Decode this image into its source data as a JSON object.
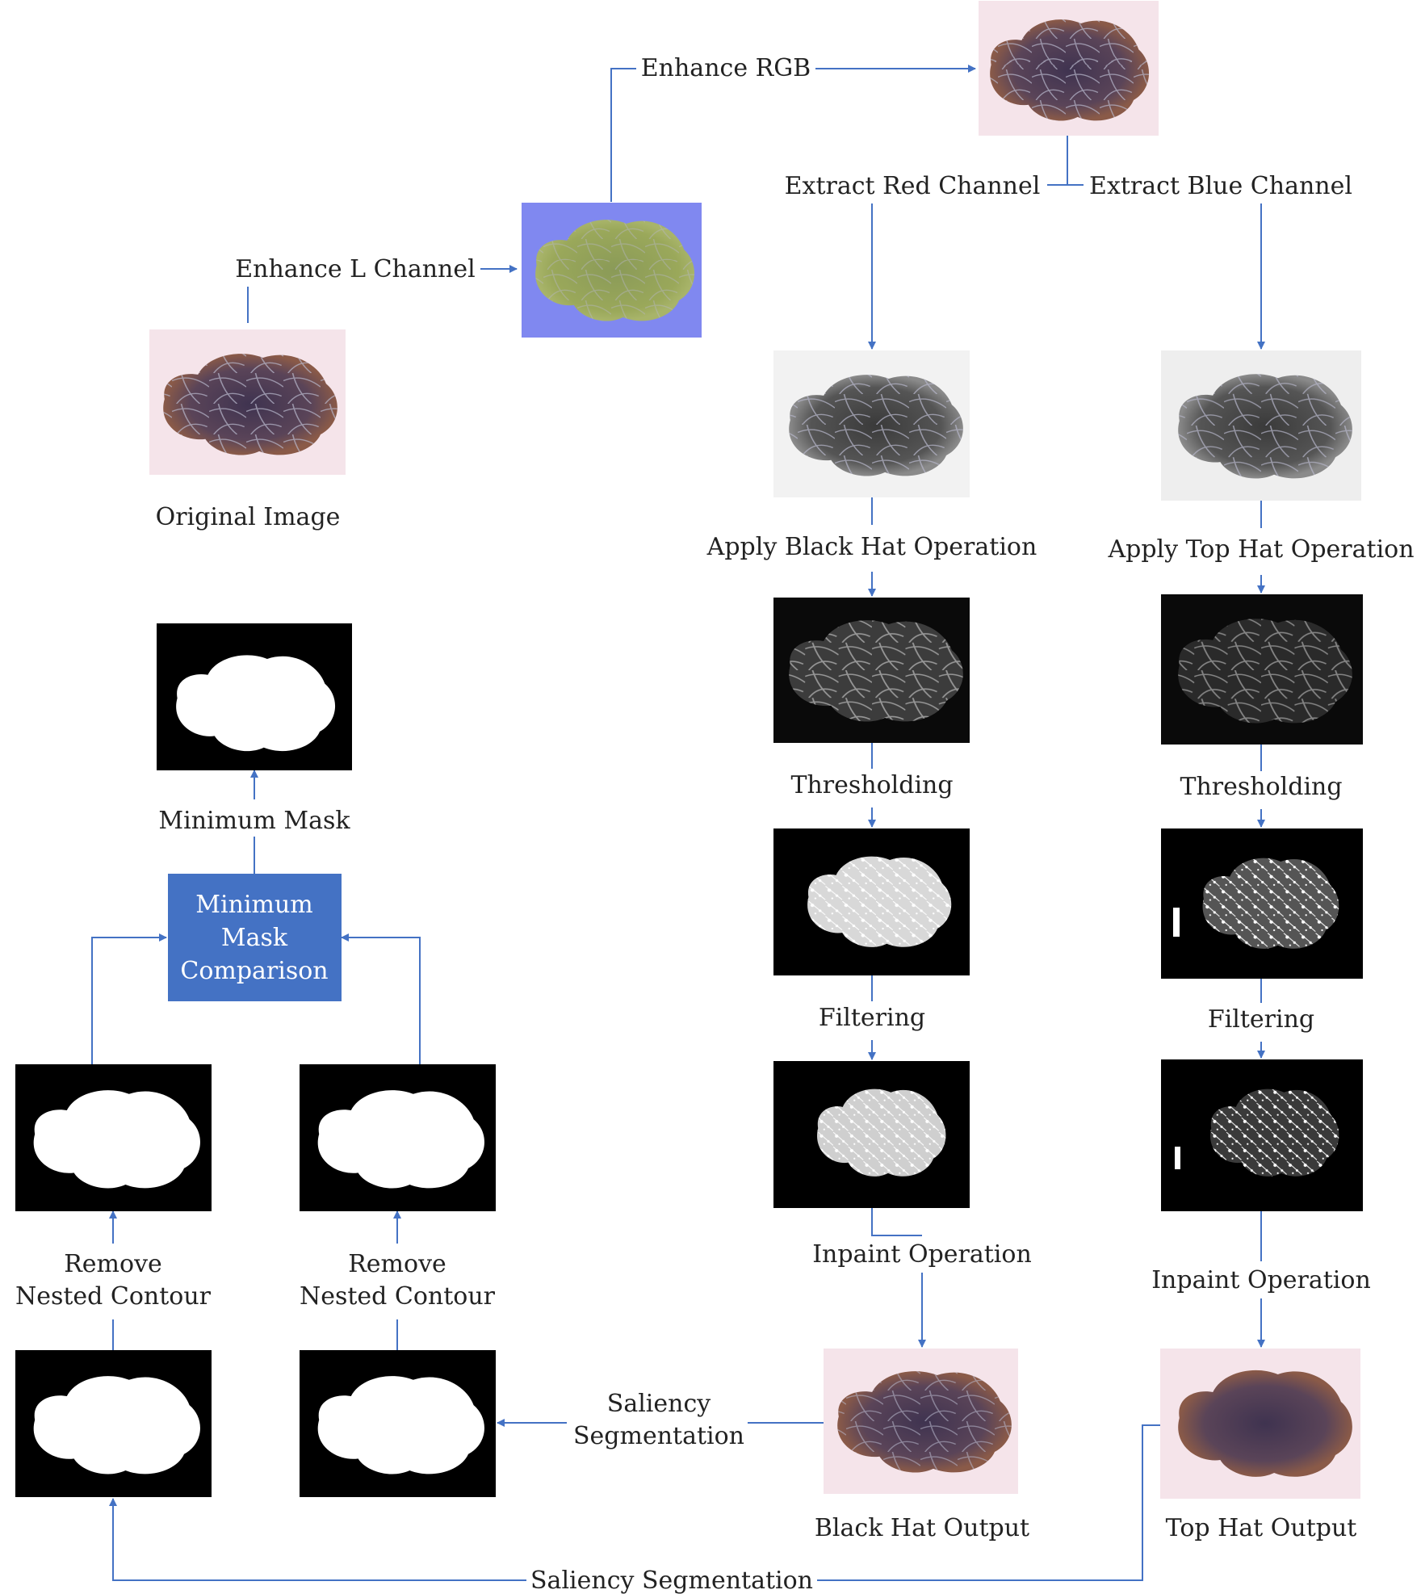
{
  "labels": {
    "enhance_rgb": "Enhance RGB",
    "extract_red": "Extract Red Channel",
    "extract_blue": "Extract Blue Channel",
    "enhance_l": "Enhance L Channel",
    "original_image": "Original Image",
    "black_hat": "Apply Black Hat Operation",
    "top_hat": "Apply Top Hat Operation",
    "minimum_mask": "Minimum Mask",
    "thresholding_left": "Thresholding",
    "thresholding_right": "Thresholding",
    "min_mask_comparison": [
      "Minimum",
      "Mask",
      "Comparison"
    ],
    "filtering_left": "Filtering",
    "filtering_right": "Filtering",
    "inpaint_left": "Inpaint Operation",
    "inpaint_right": "Inpaint Operation",
    "remove_nested_1": [
      "Remove",
      "Nested Contour"
    ],
    "remove_nested_2": [
      "Remove",
      "Nested Contour"
    ],
    "saliency_mid": [
      "Saliency",
      "Segmentation"
    ],
    "black_hat_output": "Black Hat Output",
    "top_hat_output": "Top Hat Output",
    "saliency_bottom": "Saliency Segmentation"
  },
  "colors": {
    "connector": "#4472c4",
    "process_box": "#4472c4",
    "skin": "#f5e4ea",
    "lab_background": "#8088f0",
    "lesion": "#4a3a55"
  }
}
